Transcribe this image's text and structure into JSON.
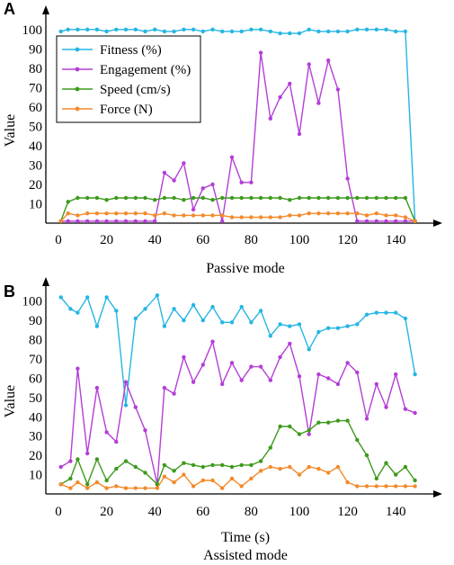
{
  "figure": {
    "panel_labels": [
      "A",
      "B"
    ]
  },
  "colors": {
    "Fitness (%)": "#25b6e3",
    "Engagement (%)": "#b43ed6",
    "Speed (cm/s)": "#3d9a1c",
    "Force (N)": "#f28a2b"
  },
  "chart_data": [
    {
      "type": "line",
      "panel": "A",
      "title": "",
      "xlabel": "Passive mode",
      "ylabel": "Value",
      "xlim": [
        0,
        150
      ],
      "ylim": [
        0,
        105
      ],
      "xticks": [
        0,
        20,
        40,
        60,
        80,
        100,
        120,
        140
      ],
      "yticks": [
        10,
        20,
        30,
        40,
        50,
        60,
        70,
        80,
        90,
        100
      ],
      "legend": "top-left",
      "grid": false,
      "x": [
        1,
        4,
        8,
        12,
        16,
        20,
        24,
        28,
        32,
        36,
        40,
        44,
        48,
        52,
        56,
        60,
        64,
        68,
        72,
        76,
        80,
        84,
        88,
        92,
        96,
        100,
        104,
        108,
        112,
        116,
        120,
        124,
        128,
        132,
        136,
        140,
        144,
        148
      ],
      "series": [
        {
          "name": "Fitness (%)",
          "values": [
            99,
            100,
            100,
            100,
            100,
            99,
            100,
            100,
            100,
            99,
            100,
            99,
            99,
            100,
            100,
            99,
            100,
            99,
            99,
            99,
            100,
            100,
            99,
            98,
            98,
            98,
            100,
            99,
            99,
            99,
            99,
            100,
            100,
            100,
            100,
            99,
            99,
            1
          ]
        },
        {
          "name": "Engagement (%)",
          "values": [
            1,
            1,
            1,
            1,
            1,
            1,
            1,
            1,
            1,
            1,
            1,
            26,
            22,
            31,
            7,
            18,
            20,
            1,
            34,
            21,
            21,
            88,
            54,
            65,
            72,
            46,
            82,
            62,
            84,
            69,
            23,
            1,
            1,
            1,
            1,
            1,
            1,
            1
          ]
        },
        {
          "name": "Speed (cm/s)",
          "values": [
            1,
            11,
            13,
            13,
            13,
            12,
            13,
            13,
            13,
            13,
            12,
            13,
            13,
            12,
            13,
            13,
            12,
            13,
            13,
            13,
            13,
            13,
            13,
            13,
            12,
            13,
            13,
            13,
            13,
            13,
            13,
            13,
            13,
            13,
            13,
            13,
            13,
            1
          ]
        },
        {
          "name": "Force (N)",
          "values": [
            1,
            5,
            4,
            5,
            5,
            5,
            5,
            5,
            5,
            5,
            4,
            5,
            4,
            4,
            4,
            4,
            4,
            4,
            3,
            3,
            3,
            3,
            3,
            3,
            4,
            4,
            5,
            5,
            5,
            5,
            5,
            5,
            4,
            5,
            4,
            4,
            3,
            1
          ]
        }
      ]
    },
    {
      "type": "line",
      "panel": "B",
      "title": "",
      "xlabel": "Time (s)",
      "subtitle_below": "Assisted mode",
      "ylabel": "Value",
      "xlim": [
        0,
        150
      ],
      "ylim": [
        0,
        105
      ],
      "xticks": [
        0,
        20,
        40,
        60,
        80,
        100,
        120,
        140
      ],
      "yticks": [
        10,
        20,
        30,
        40,
        50,
        60,
        70,
        80,
        90,
        100
      ],
      "legend": "none",
      "grid": false,
      "x": [
        1,
        5,
        8,
        12,
        16,
        20,
        24,
        28,
        32,
        36,
        41,
        44,
        48,
        52,
        56,
        60,
        64,
        68,
        72,
        76,
        80,
        84,
        88,
        92,
        96,
        100,
        104,
        108,
        112,
        116,
        120,
        124,
        128,
        132,
        136,
        140,
        144,
        148
      ],
      "series": [
        {
          "name": "Fitness (%)",
          "values": [
            102,
            96,
            94,
            102,
            87,
            102,
            95,
            46,
            91,
            96,
            103,
            87,
            96,
            90,
            98,
            90,
            97,
            89,
            89,
            97,
            89,
            95,
            82,
            88,
            87,
            88,
            75,
            84,
            86,
            86,
            87,
            88,
            93,
            94,
            94,
            94,
            91,
            62
          ]
        },
        {
          "name": "Engagement (%)",
          "values": [
            14,
            17,
            65,
            21,
            55,
            32,
            27,
            58,
            45,
            33,
            5,
            55,
            52,
            71,
            58,
            67,
            79,
            57,
            68,
            59,
            66,
            66,
            59,
            71,
            78,
            61,
            31,
            62,
            60,
            57,
            68,
            63,
            39,
            57,
            45,
            62,
            44,
            42
          ]
        },
        {
          "name": "Speed (cm/s)",
          "values": [
            5,
            8,
            18,
            5,
            18,
            7,
            13,
            17,
            14,
            11,
            5,
            15,
            12,
            16,
            15,
            14,
            15,
            15,
            14,
            15,
            15,
            17,
            24,
            35,
            35,
            31,
            33,
            37,
            37,
            38,
            38,
            28,
            20,
            8,
            16,
            10,
            14,
            7
          ]
        },
        {
          "name": "Force (N)",
          "values": [
            5,
            3,
            6,
            3,
            6,
            3,
            4,
            3,
            3,
            3,
            3,
            9,
            6,
            10,
            4,
            7,
            7,
            3,
            8,
            4,
            8,
            12,
            14,
            13,
            14,
            10,
            14,
            13,
            11,
            14,
            6,
            4,
            4,
            4,
            4,
            4,
            4,
            4
          ]
        }
      ]
    }
  ]
}
